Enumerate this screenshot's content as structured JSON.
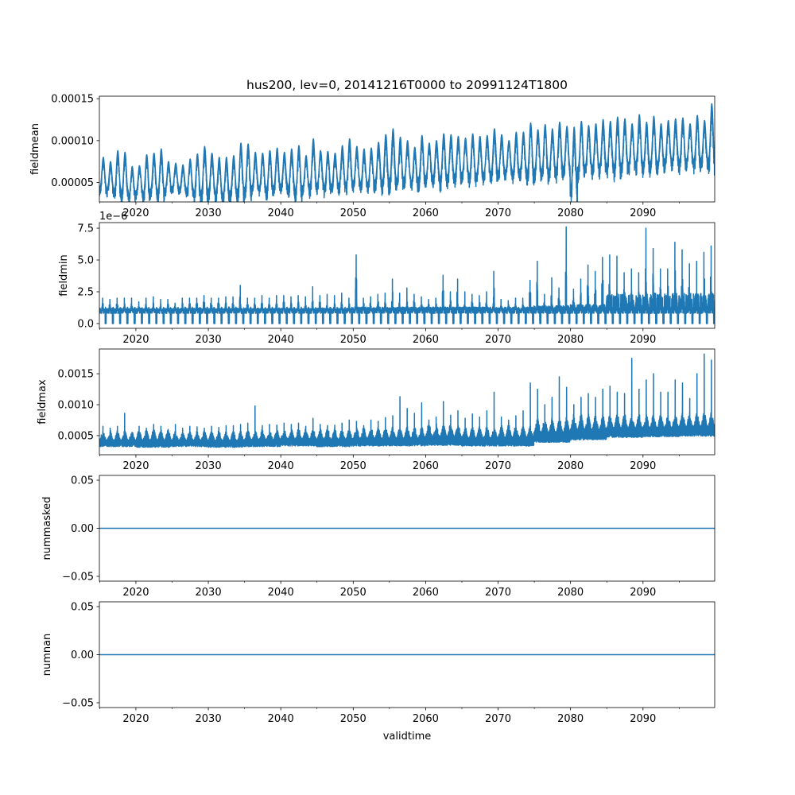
{
  "chart_data": {
    "type": "line",
    "title": "hus200, lev=0, 20141216T0000 to 20991124T1800",
    "xlabel": "validtime",
    "x_range": [
      2014.96,
      2099.9
    ],
    "x_major_ticks": [
      2020,
      2030,
      2040,
      2050,
      2060,
      2070,
      2080,
      2090
    ],
    "x_tick_labels": [
      "2020",
      "2030",
      "2040",
      "2050",
      "2060",
      "2070",
      "2080",
      "2090"
    ],
    "x_minor_ticks": [
      2015,
      2025,
      2035,
      2045,
      2055,
      2065,
      2075,
      2085,
      2095
    ],
    "years_start": 2015,
    "line_color": "#1f77b4",
    "panels": [
      {
        "ylabel": "fieldmean",
        "kind": "seasonal",
        "value_scale": 1e-05,
        "ylim": [
          2.68,
          15.3
        ],
        "y_ticks": [
          5,
          10,
          15
        ],
        "y_tick_labels": [
          "0.00005",
          "0.00010",
          "0.00015"
        ],
        "annual_max": [
          8.0,
          7.5,
          8.8,
          8.6,
          6.9,
          7.0,
          8.3,
          8.5,
          9.0,
          7.5,
          7.3,
          7.1,
          7.8,
          8.4,
          9.3,
          8.5,
          8.0,
          8.0,
          8.2,
          9.7,
          9.6,
          8.6,
          8.5,
          8.8,
          9.1,
          8.6,
          9.0,
          9.4,
          8.2,
          10.2,
          8.8,
          8.7,
          8.5,
          9.4,
          10.2,
          9.3,
          9.0,
          9.1,
          9.8,
          10.7,
          11.4,
          10.4,
          10.0,
          9.2,
          10.6,
          9.7,
          10.0,
          10.8,
          10.7,
          10.5,
          10.3,
          10.8,
          10.5,
          10.6,
          11.4,
          10.7,
          10.0,
          11.0,
          11.0,
          12.1,
          11.3,
          11.9,
          11.4,
          12.2,
          11.7,
          11.6,
          12.3,
          11.8,
          12.0,
          12.5,
          12.3,
          12.8,
          12.6,
          12.0,
          13.1,
          12.2,
          12.9,
          12.0,
          12.4,
          12.6,
          12.7,
          12.0,
          13.0,
          12.4,
          14.4
        ],
        "annual_min": [
          4.5,
          4.3,
          4.2,
          4.0,
          3.6,
          4.0,
          3.8,
          4.2,
          4.0,
          4.3,
          4.5,
          4.4,
          4.2,
          3.9,
          4.0,
          4.2,
          3.8,
          3.6,
          4.0,
          4.2,
          4.4,
          4.6,
          4.5,
          4.3,
          4.6,
          4.8,
          4.5,
          4.2,
          4.6,
          4.8,
          4.9,
          4.6,
          4.8,
          4.9,
          5.0,
          5.2,
          5.0,
          5.0,
          5.3,
          5.2,
          5.5,
          5.4,
          5.6,
          5.2,
          5.6,
          5.8,
          5.8,
          5.6,
          5.9,
          6.0,
          6.2,
          6.0,
          6.1,
          6.2,
          6.3,
          6.4,
          6.5,
          6.2,
          6.6,
          6.4,
          6.6,
          6.5,
          6.6,
          6.8,
          6.9,
          4.5,
          6.8,
          7.1,
          7.0,
          7.2,
          7.2,
          7.0,
          7.3,
          7.4,
          7.5,
          7.3,
          7.5,
          7.4,
          7.8,
          7.8,
          7.6,
          7.8,
          7.7,
          7.9,
          7.8
        ]
      },
      {
        "ylabel": "fieldmin",
        "kind": "spiky",
        "offset_text": "1e−6",
        "value_scale": 1e-06,
        "ylim": [
          -0.375,
          7.94
        ],
        "y_ticks": [
          0,
          2.5,
          5,
          7.5
        ],
        "y_tick_labels": [
          "0.0",
          "2.5",
          "5.0",
          "7.5"
        ],
        "baseline": 1.0,
        "floor": 0.0,
        "annual_max": [
          2.0,
          1.9,
          2.0,
          2.0,
          2.0,
          1.7,
          2.0,
          2.1,
          1.9,
          1.9,
          1.6,
          2.0,
          2.0,
          2.0,
          2.2,
          2.0,
          2.0,
          2.1,
          2.1,
          3.0,
          2.0,
          2.0,
          2.2,
          2.0,
          2.2,
          2.2,
          2.1,
          2.2,
          2.1,
          2.9,
          2.2,
          2.3,
          2.2,
          2.4,
          2.0,
          5.4,
          2.0,
          2.1,
          2.3,
          2.4,
          3.5,
          2.4,
          2.8,
          2.3,
          2.1,
          1.9,
          2.0,
          3.8,
          2.5,
          3.5,
          2.5,
          2.3,
          2.2,
          2.5,
          4.1,
          1.9,
          1.8,
          2.0,
          2.0,
          3.4,
          4.9,
          2.3,
          3.6,
          2.8,
          7.6,
          2.7,
          3.5,
          4.6,
          4.1,
          5.2,
          5.4,
          5.3,
          4.0,
          4.3,
          4.0,
          7.5,
          5.9,
          4.3,
          4.3,
          6.4,
          5.8,
          4.7,
          4.9,
          5.6,
          6.1
        ],
        "band_top_5yr": [
          1.2,
          1.2,
          1.2,
          1.2,
          1.2,
          1.2,
          1.2,
          1.3,
          1.3,
          1.3,
          1.3,
          1.3,
          1.4,
          1.5,
          2.3,
          2.4,
          2.4
        ]
      },
      {
        "ylabel": "fieldmax",
        "kind": "band",
        "value_scale": 0.0001,
        "ylim": [
          1.9,
          19.0
        ],
        "y_ticks": [
          5,
          10,
          15
        ],
        "y_tick_labels": [
          "0.0005",
          "0.0010",
          "0.0015"
        ],
        "annual_max": [
          6.5,
          6.2,
          6.5,
          8.6,
          5.3,
          6.5,
          6.2,
          6.8,
          6.5,
          6.0,
          6.8,
          6.2,
          6.5,
          6.4,
          6.2,
          6.5,
          6.3,
          6.6,
          6.6,
          6.8,
          7.0,
          9.8,
          6.6,
          6.8,
          6.7,
          7.0,
          6.8,
          7.0,
          6.5,
          7.8,
          6.8,
          6.6,
          6.7,
          7.0,
          7.5,
          7.3,
          6.6,
          7.5,
          7.3,
          7.9,
          8.2,
          11.3,
          9.4,
          8.6,
          10.3,
          7.5,
          8.0,
          10.5,
          8.3,
          9.0,
          7.8,
          8.5,
          8.0,
          9.0,
          12.0,
          8.0,
          7.5,
          8.2,
          9.0,
          13.5,
          12.5,
          10.0,
          11.2,
          14.5,
          12.8,
          10.0,
          11.2,
          11.8,
          11.2,
          12.5,
          13.0,
          12.0,
          11.8,
          17.5,
          12.5,
          14.0,
          15.0,
          12.0,
          12.0,
          14.0,
          13.5,
          11.0,
          15.0,
          18.2,
          17.2
        ],
        "low_5yr": [
          3.2,
          3.1,
          3.2,
          3.1,
          3.2,
          3.3,
          3.2,
          3.3,
          3.3,
          3.4,
          3.3,
          3.3,
          3.9,
          4.3,
          4.7,
          4.8,
          4.9
        ],
        "band_top_5yr": [
          5.8,
          6.0,
          5.8,
          5.8,
          6.0,
          6.2,
          6.2,
          6.4,
          6.5,
          7.0,
          6.5,
          6.8,
          8.0,
          8.5,
          8.5,
          8.5,
          8.8
        ]
      },
      {
        "ylabel": "nummasked",
        "kind": "constant",
        "value": 0,
        "value_scale": 1,
        "ylim": [
          -0.055,
          0.055
        ],
        "y_ticks": [
          -0.05,
          0,
          0.05
        ],
        "y_tick_labels": [
          "−0.05",
          "0.00",
          "0.05"
        ]
      },
      {
        "ylabel": "numnan",
        "kind": "constant",
        "value": 0,
        "value_scale": 1,
        "ylim": [
          -0.055,
          0.055
        ],
        "y_ticks": [
          -0.05,
          0,
          0.05
        ],
        "y_tick_labels": [
          "−0.05",
          "0.00",
          "0.05"
        ]
      }
    ]
  }
}
